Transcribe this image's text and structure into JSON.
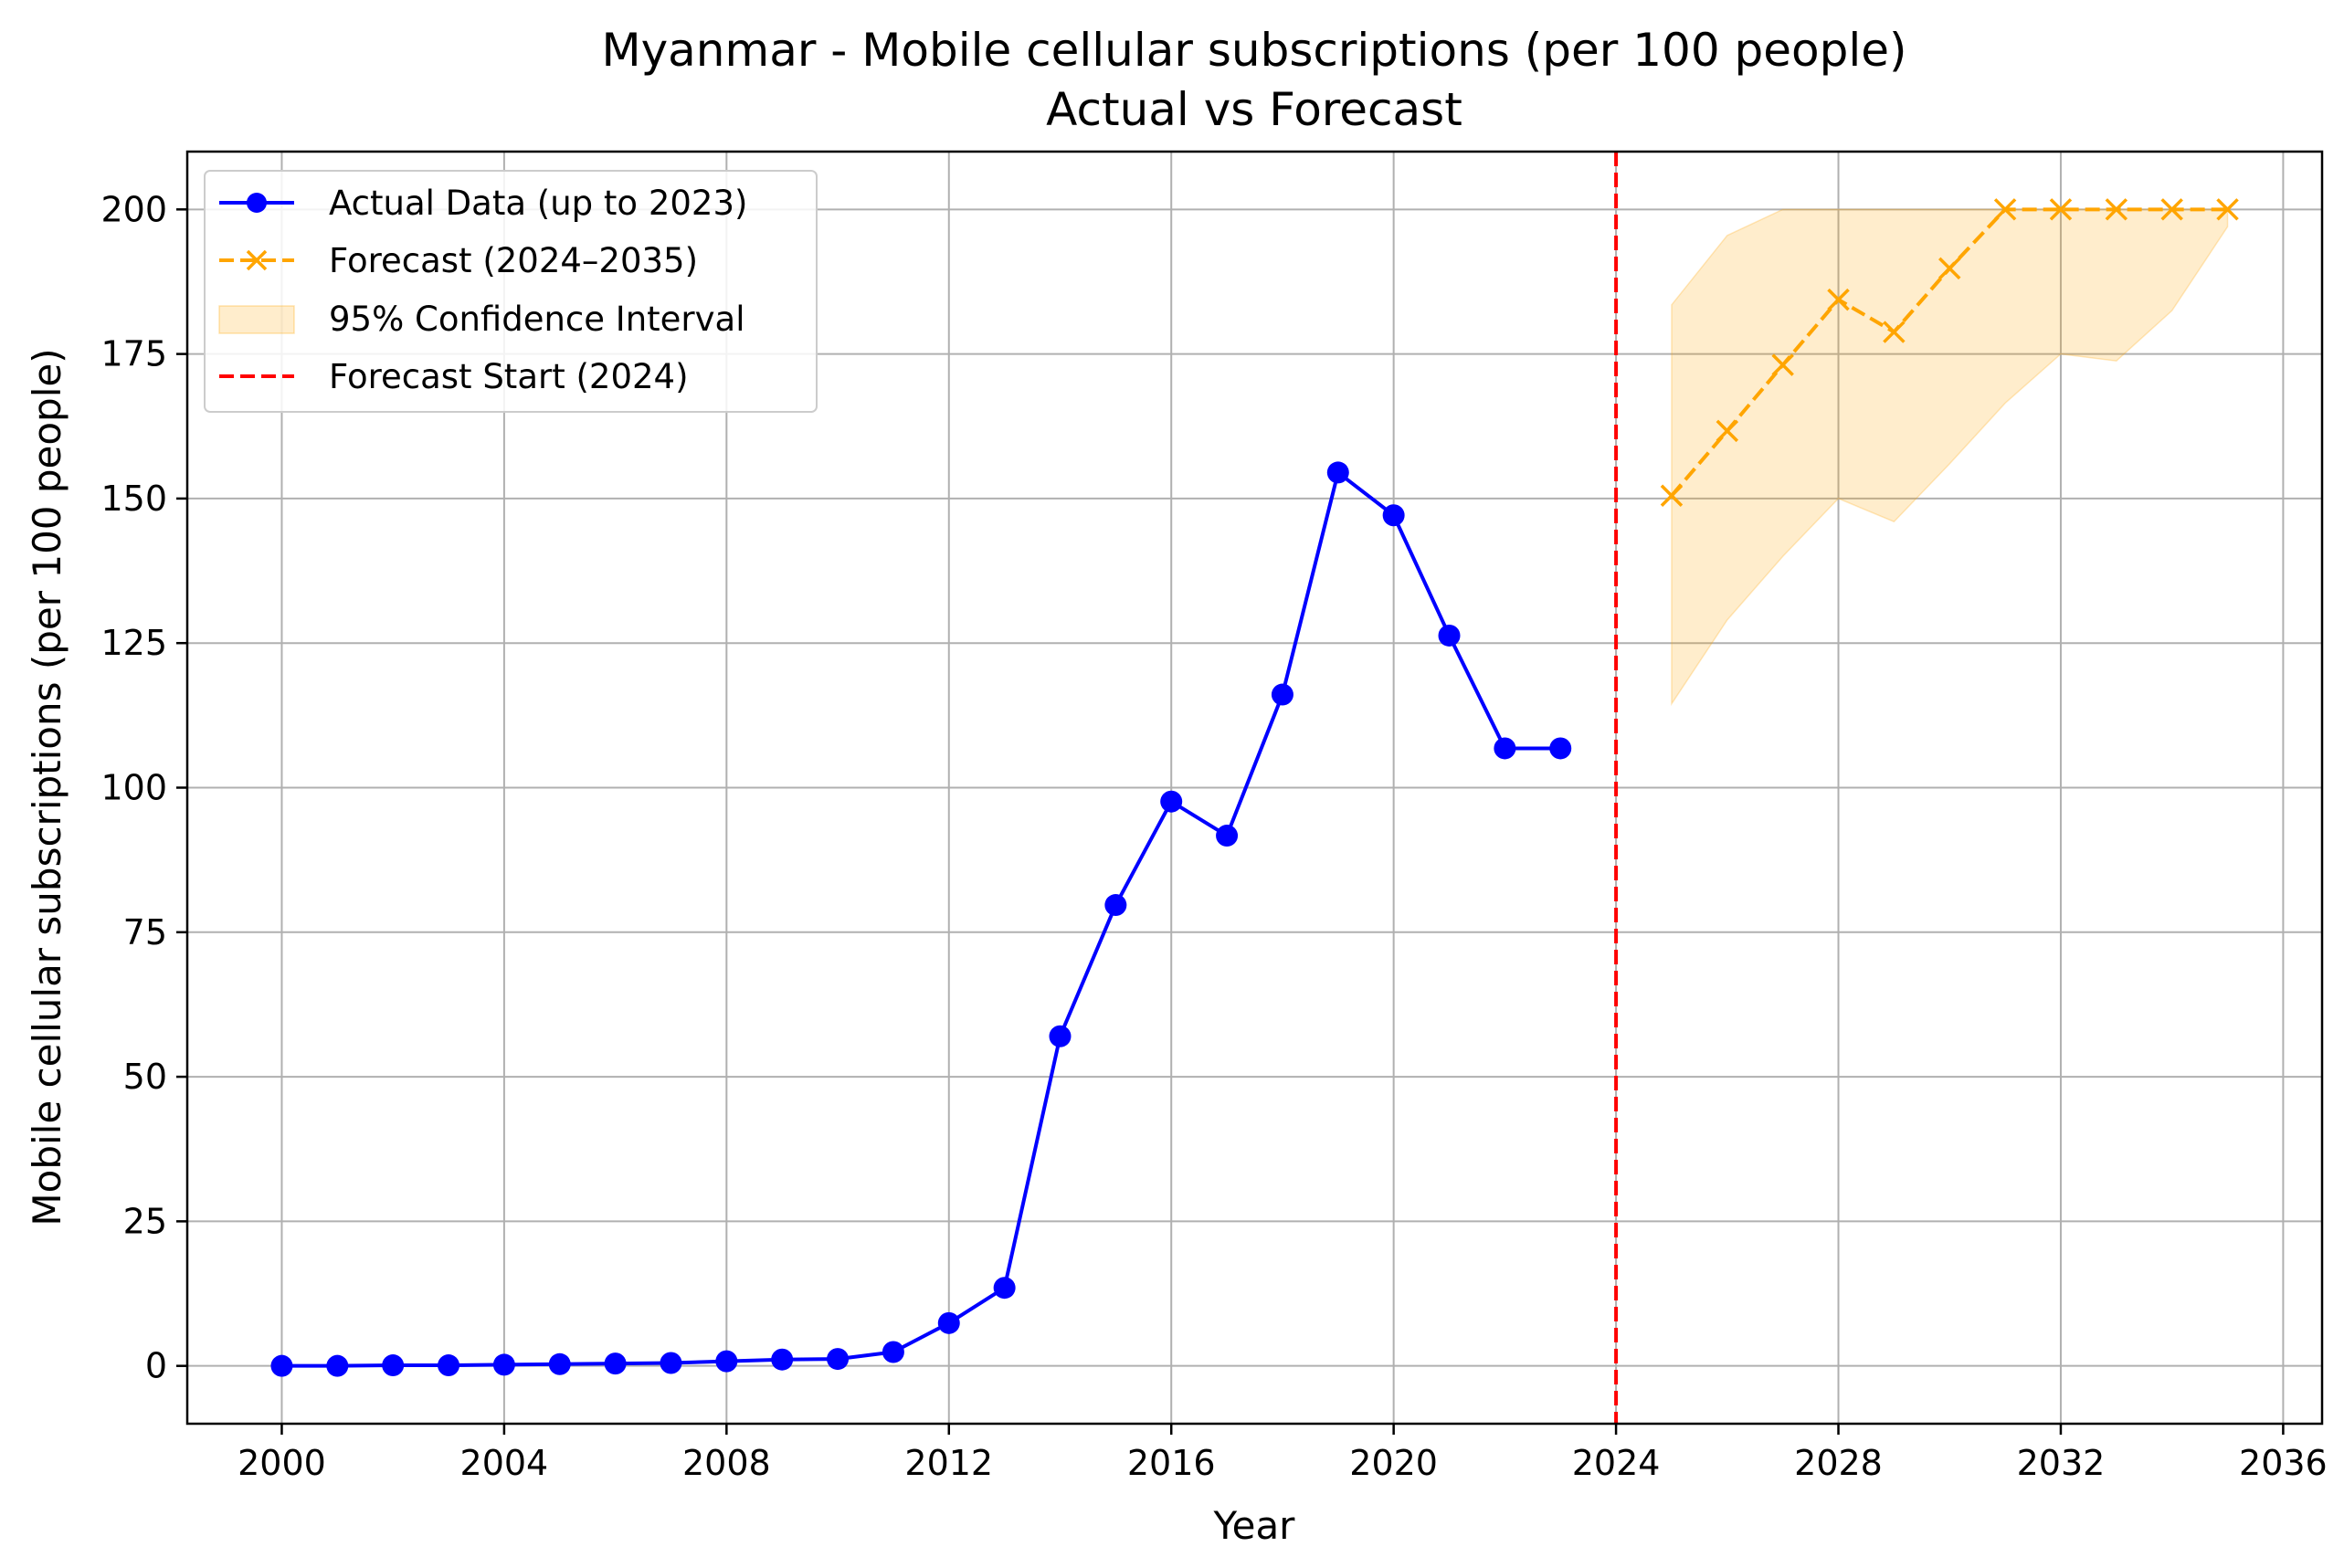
{
  "chart_data": {
    "type": "line",
    "title": "Myanmar - Mobile cellular subscriptions (per 100 people)",
    "subtitle": "Actual vs Forecast",
    "xlabel": "Year",
    "ylabel": "Mobile cellular subscriptions (per 100 people)",
    "xlim": [
      1998.3,
      2036.7
    ],
    "ylim": [
      -10,
      210
    ],
    "xticks": [
      2000,
      2004,
      2008,
      2012,
      2016,
      2020,
      2024,
      2028,
      2032,
      2036
    ],
    "yticks": [
      0,
      25,
      50,
      75,
      100,
      125,
      150,
      175,
      200
    ],
    "grid": true,
    "legend_position": "upper left",
    "series": [
      {
        "name": "Actual Data (up to 2023)",
        "color": "#0000ff",
        "style": "solid",
        "marker": "circle",
        "x": [
          2000,
          2001,
          2002,
          2003,
          2004,
          2005,
          2006,
          2007,
          2008,
          2009,
          2010,
          2011,
          2012,
          2013,
          2014,
          2015,
          2016,
          2017,
          2018,
          2019,
          2020,
          2021,
          2022,
          2023
        ],
        "y": [
          0.0,
          0.0,
          0.1,
          0.1,
          0.2,
          0.3,
          0.4,
          0.5,
          0.8,
          1.1,
          1.2,
          2.4,
          7.4,
          13.5,
          57.0,
          79.7,
          97.6,
          91.7,
          116.1,
          154.5,
          147.1,
          126.3,
          106.8,
          106.8
        ]
      },
      {
        "name": "Forecast (2024–2035)",
        "color": "#ffa500",
        "style": "dashed",
        "marker": "x",
        "x": [
          2025,
          2026,
          2027,
          2028,
          2029,
          2030,
          2031,
          2032,
          2033,
          2034,
          2035
        ],
        "y": [
          150.5,
          161.7,
          173.1,
          184.4,
          178.8,
          189.8,
          200.0,
          200.0,
          200.0,
          200.0,
          200.0
        ]
      }
    ],
    "confidence_interval": {
      "name": "95% Confidence Interval",
      "color": "#ffa500",
      "x": [
        2025,
        2026,
        2027,
        2028,
        2029,
        2030,
        2031,
        2032,
        2033,
        2034,
        2035
      ],
      "lower": [
        114.5,
        129.0,
        140.0,
        150.0,
        146.0,
        156.0,
        166.5,
        175.0,
        173.8,
        182.5,
        197.0
      ],
      "upper": [
        183.5,
        195.5,
        200.0,
        200.0,
        200.0,
        200.0,
        200.0,
        200.0,
        200.0,
        200.0,
        200.0
      ]
    },
    "forecast_start": {
      "name": "Forecast Start (2024)",
      "x": 2024,
      "color": "#ff0000",
      "style": "dashed"
    }
  }
}
